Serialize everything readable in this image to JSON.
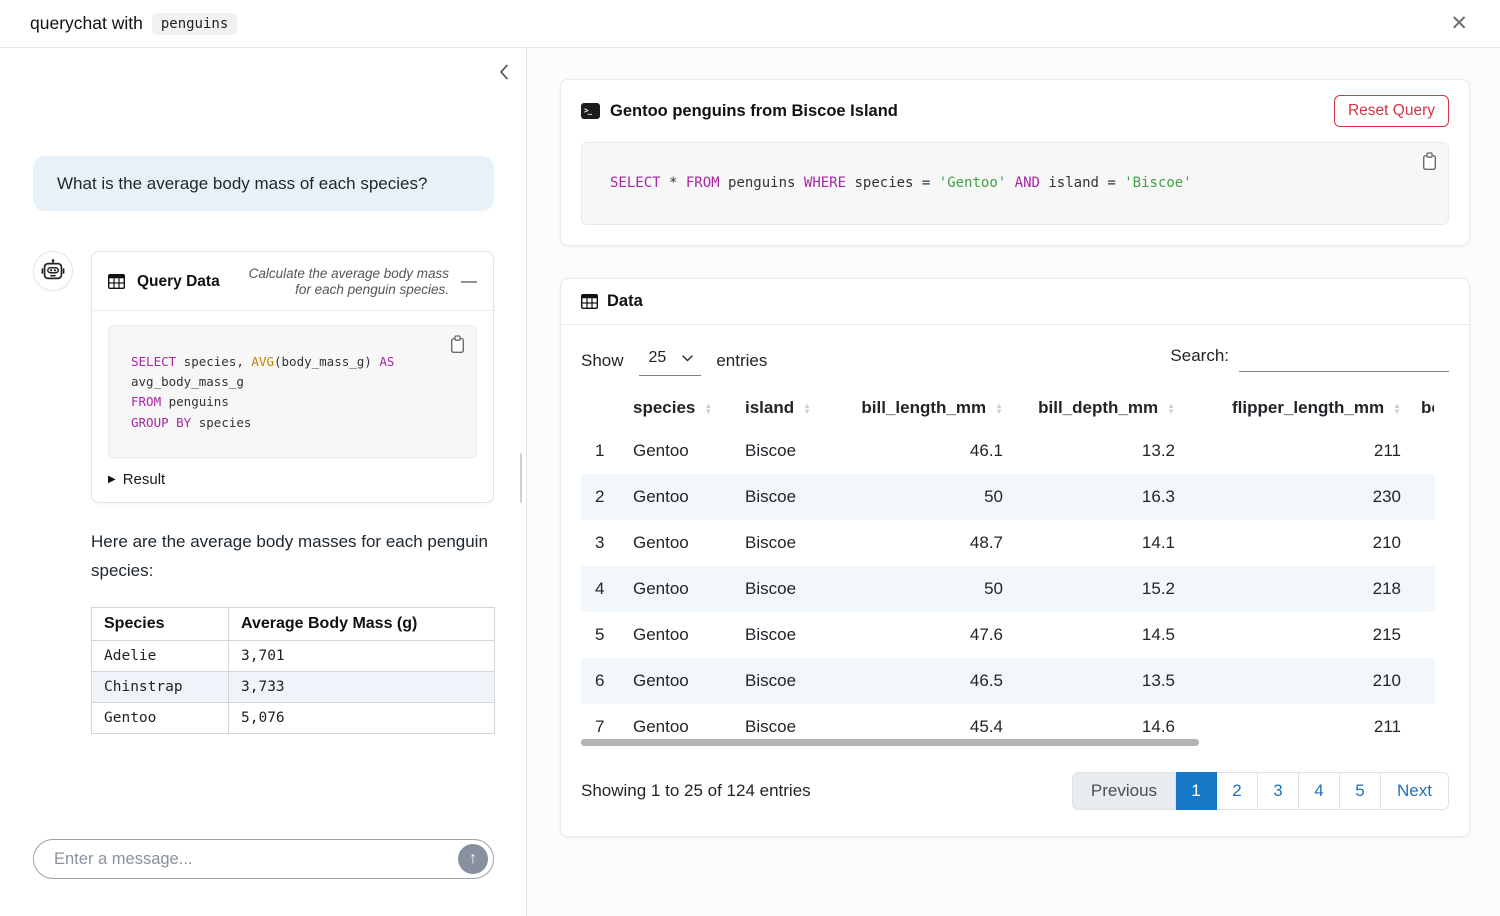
{
  "header": {
    "title_prefix": "querychat with",
    "title_code": "penguins",
    "close_glyph": "✕"
  },
  "chat": {
    "user_message": "What is the average body mass of each species?",
    "tool_card": {
      "title": "Query Data",
      "subtitle": "Calculate the average body mass for each penguin species.",
      "collapse_glyph": "—",
      "result_label": "Result",
      "result_arrow": "▶",
      "sql_lines": [
        [
          {
            "t": "kw",
            "v": "SELECT"
          },
          {
            "t": "pl",
            "v": " species, "
          },
          {
            "t": "fn",
            "v": "AVG"
          },
          {
            "t": "pl",
            "v": "(body_mass_g) "
          },
          {
            "t": "kw",
            "v": "AS"
          }
        ],
        [
          {
            "t": "pl",
            "v": "avg_body_mass_g"
          }
        ],
        [
          {
            "t": "kw",
            "v": "FROM"
          },
          {
            "t": "pl",
            "v": " penguins"
          }
        ],
        [
          {
            "t": "kw",
            "v": "GROUP BY"
          },
          {
            "t": "pl",
            "v": " species"
          }
        ]
      ]
    },
    "answer_text": "Here are the average body masses for each penguin species:",
    "answer_table": {
      "headers": [
        {
          "label": "Species",
          "sortable": false
        },
        {
          "label": "Average Body Mass (g)",
          "sortable": false
        }
      ],
      "rows": [
        [
          "Adelie",
          "3,701"
        ],
        [
          "Chinstrap",
          "3,733"
        ],
        [
          "Gentoo",
          "5,076"
        ]
      ]
    },
    "input": {
      "placeholder": "Enter a message...",
      "send_glyph": "↑"
    }
  },
  "main": {
    "query_card": {
      "title": "Gentoo penguins from Biscoe Island",
      "reset_button": "Reset Query",
      "sql_lines": [
        [
          {
            "t": "kw",
            "v": "SELECT"
          },
          {
            "t": "pl",
            "v": " * "
          },
          {
            "t": "kw",
            "v": "FROM"
          },
          {
            "t": "pl",
            "v": " penguins "
          },
          {
            "t": "kw",
            "v": "WHERE"
          },
          {
            "t": "pl",
            "v": " species = "
          },
          {
            "t": "str",
            "v": "'Gentoo'"
          },
          {
            "t": "pl",
            "v": " "
          },
          {
            "t": "kw",
            "v": "AND"
          },
          {
            "t": "pl",
            "v": " island = "
          },
          {
            "t": "str",
            "v": "'Biscoe'"
          }
        ]
      ]
    },
    "data_card": {
      "title": "Data",
      "show_label": "Show",
      "page_size": "25",
      "entries_label": "entries",
      "search_label": "Search:",
      "table": {
        "headers": [
          {
            "label": "",
            "sortable": false
          },
          {
            "label": "species",
            "sortable": true
          },
          {
            "label": "island",
            "sortable": true
          },
          {
            "label": "bill_length_mm",
            "sortable": true
          },
          {
            "label": "bill_depth_mm",
            "sortable": true
          },
          {
            "label": "flipper_length_mm",
            "sortable": true
          },
          {
            "label": "body_mass_g",
            "sortable": false,
            "clip": true
          }
        ],
        "rows": [
          [
            "1",
            "Gentoo",
            "Biscoe",
            "46.1",
            "13.2",
            "211",
            ""
          ],
          [
            "2",
            "Gentoo",
            "Biscoe",
            "50",
            "16.3",
            "230",
            ""
          ],
          [
            "3",
            "Gentoo",
            "Biscoe",
            "48.7",
            "14.1",
            "210",
            ""
          ],
          [
            "4",
            "Gentoo",
            "Biscoe",
            "50",
            "15.2",
            "218",
            ""
          ],
          [
            "5",
            "Gentoo",
            "Biscoe",
            "47.6",
            "14.5",
            "215",
            ""
          ],
          [
            "6",
            "Gentoo",
            "Biscoe",
            "46.5",
            "13.5",
            "210",
            ""
          ],
          [
            "7",
            "Gentoo",
            "Biscoe",
            "45.4",
            "14.6",
            "211",
            ""
          ]
        ]
      },
      "footer": {
        "showing_text": "Showing 1 to 25 of 124 entries",
        "pagination": [
          {
            "label": "Previous",
            "state": "disabled"
          },
          {
            "label": "1",
            "state": "active"
          },
          {
            "label": "2",
            "state": "link"
          },
          {
            "label": "3",
            "state": "link"
          },
          {
            "label": "4",
            "state": "link"
          },
          {
            "label": "5",
            "state": "link"
          },
          {
            "label": "Next",
            "state": "link"
          }
        ]
      }
    }
  },
  "colors": {
    "accent_blue": "#1878c8",
    "link_blue": "#2272bb",
    "danger_red": "#d33545",
    "sql_keyword": "#a626a4",
    "sql_function": "#c18401",
    "sql_string": "#43a047",
    "row_stripe": "#f2f7fb",
    "user_bubble": "#e9f1f8"
  }
}
